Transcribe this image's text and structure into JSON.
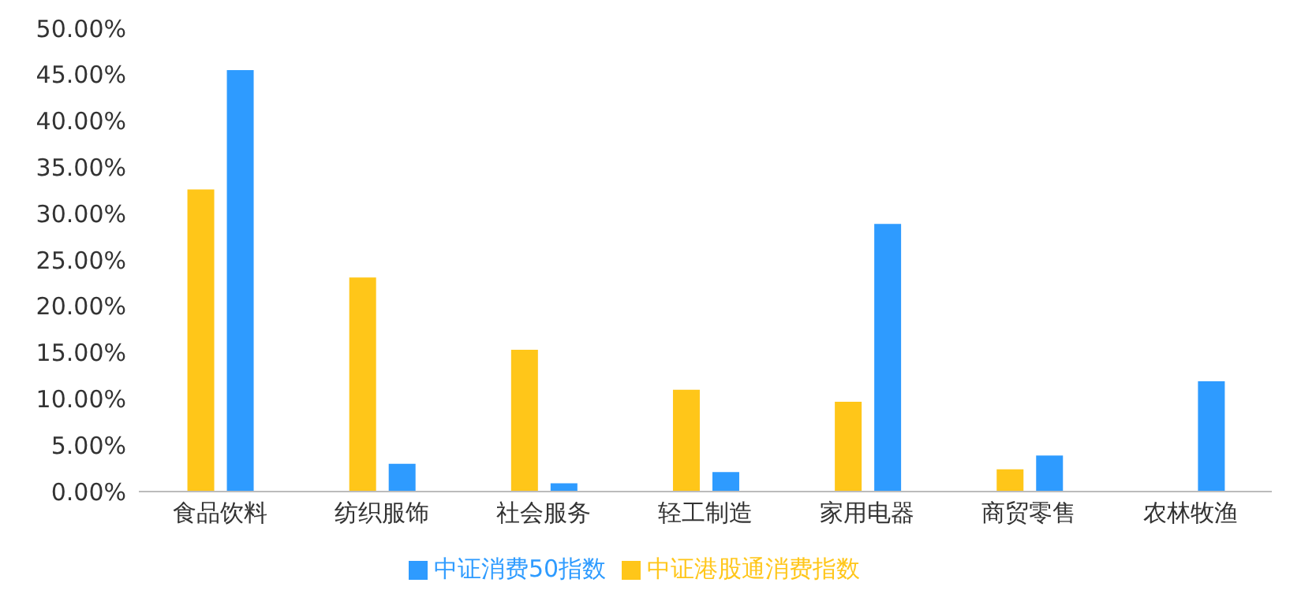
{
  "chart_data": {
    "type": "bar",
    "categories": [
      "食品饮料",
      "纺织服饰",
      "社会服务",
      "轻工制造",
      "家用电器",
      "商贸零售",
      "农林牧渔"
    ],
    "series": [
      {
        "name": "中证港股通消费指数",
        "color": "#ffc619",
        "values": [
          32.6,
          23.1,
          15.3,
          11.0,
          9.7,
          2.4,
          0
        ]
      },
      {
        "name": "中证消费50指数",
        "color": "#2e9bff",
        "values": [
          45.5,
          3.0,
          0.9,
          2.1,
          28.9,
          3.9,
          11.9
        ]
      }
    ],
    "ylim": [
      0,
      50
    ],
    "yticks": [
      {
        "value": 0,
        "label": "0.00%"
      },
      {
        "value": 5,
        "label": "5.00%"
      },
      {
        "value": 10,
        "label": "10.00%"
      },
      {
        "value": 15,
        "label": "15.00%"
      },
      {
        "value": 20,
        "label": "20.00%"
      },
      {
        "value": 25,
        "label": "25.00%"
      },
      {
        "value": 30,
        "label": "30.00%"
      },
      {
        "value": 35,
        "label": "35.00%"
      },
      {
        "value": 40,
        "label": "40.00%"
      },
      {
        "value": 45,
        "label": "45.00%"
      },
      {
        "value": 50,
        "label": "50.00%"
      }
    ],
    "grid": false,
    "legend": "bottom"
  }
}
